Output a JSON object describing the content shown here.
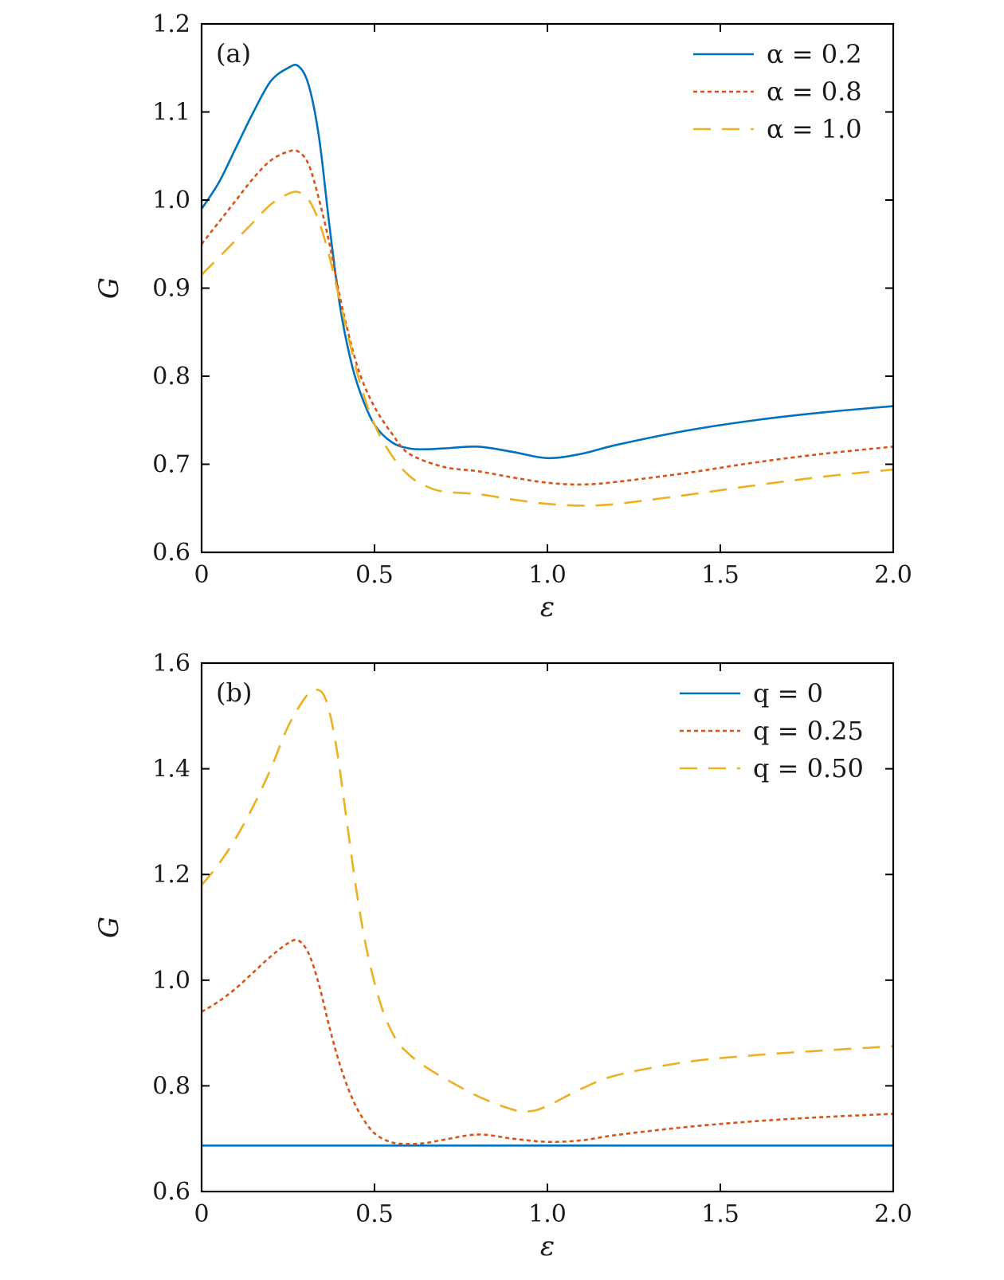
{
  "colors": {
    "series1": "#0072BD",
    "series2": "#D95319",
    "series3": "#EDB120",
    "axis": "#000000"
  },
  "chart_data": [
    {
      "type": "line",
      "panel_label": "(a)",
      "xlabel": "ε",
      "ylabel": "G",
      "xlim": [
        0,
        2.0
      ],
      "ylim": [
        0.6,
        1.2
      ],
      "xticks": [
        {
          "v": 0,
          "label": "0"
        },
        {
          "v": 0.5,
          "label": "0.5"
        },
        {
          "v": 1.0,
          "label": "1.0"
        },
        {
          "v": 1.5,
          "label": "1.5"
        },
        {
          "v": 2.0,
          "label": "2.0"
        }
      ],
      "yticks": [
        {
          "v": 0.6,
          "label": "0.6"
        },
        {
          "v": 0.7,
          "label": "0.7"
        },
        {
          "v": 0.8,
          "label": "0.8"
        },
        {
          "v": 0.9,
          "label": "0.9"
        },
        {
          "v": 1.0,
          "label": "1.0"
        },
        {
          "v": 1.1,
          "label": "1.1"
        },
        {
          "v": 1.2,
          "label": "1.2"
        }
      ],
      "legend_position": "top-right",
      "series": [
        {
          "name": "α = 0.2",
          "style": "solid",
          "color": "#0072BD",
          "x": [
            0,
            0.05,
            0.1,
            0.15,
            0.2,
            0.25,
            0.28,
            0.31,
            0.34,
            0.37,
            0.4,
            0.43,
            0.46,
            0.5,
            0.55,
            0.6,
            0.65,
            0.7,
            0.8,
            0.9,
            1.0,
            1.1,
            1.2,
            1.4,
            1.6,
            1.8,
            2.0
          ],
          "y": [
            0.99,
            1.02,
            1.06,
            1.1,
            1.135,
            1.15,
            1.152,
            1.13,
            1.07,
            0.97,
            0.88,
            0.82,
            0.78,
            0.745,
            0.725,
            0.718,
            0.717,
            0.718,
            0.72,
            0.714,
            0.707,
            0.712,
            0.722,
            0.738,
            0.75,
            0.759,
            0.766
          ]
        },
        {
          "name": "α = 0.8",
          "style": "dotted",
          "color": "#D95319",
          "x": [
            0,
            0.05,
            0.1,
            0.15,
            0.2,
            0.25,
            0.28,
            0.31,
            0.34,
            0.37,
            0.4,
            0.43,
            0.46,
            0.5,
            0.55,
            0.6,
            0.7,
            0.8,
            0.9,
            1.0,
            1.1,
            1.2,
            1.4,
            1.6,
            1.8,
            2.0
          ],
          "y": [
            0.95,
            0.975,
            1.0,
            1.025,
            1.045,
            1.055,
            1.055,
            1.04,
            1.0,
            0.95,
            0.89,
            0.84,
            0.8,
            0.765,
            0.735,
            0.712,
            0.697,
            0.692,
            0.685,
            0.679,
            0.677,
            0.68,
            0.69,
            0.702,
            0.712,
            0.72
          ]
        },
        {
          "name": "α = 1.0",
          "style": "dashed",
          "color": "#EDB120",
          "x": [
            0,
            0.05,
            0.1,
            0.15,
            0.2,
            0.25,
            0.28,
            0.31,
            0.34,
            0.37,
            0.4,
            0.43,
            0.46,
            0.5,
            0.55,
            0.6,
            0.65,
            0.7,
            0.8,
            0.9,
            1.0,
            1.1,
            1.2,
            1.4,
            1.6,
            1.8,
            2.0
          ],
          "y": [
            0.915,
            0.935,
            0.955,
            0.975,
            0.995,
            1.007,
            1.009,
            1.0,
            0.975,
            0.935,
            0.885,
            0.835,
            0.79,
            0.745,
            0.71,
            0.687,
            0.675,
            0.669,
            0.666,
            0.66,
            0.655,
            0.653,
            0.655,
            0.665,
            0.676,
            0.686,
            0.694
          ]
        }
      ]
    },
    {
      "type": "line",
      "panel_label": "(b)",
      "xlabel": "ε",
      "ylabel": "G",
      "xlim": [
        0,
        2.0
      ],
      "ylim": [
        0.6,
        1.6
      ],
      "xticks": [
        {
          "v": 0,
          "label": "0"
        },
        {
          "v": 0.5,
          "label": "0.5"
        },
        {
          "v": 1.0,
          "label": "1.0"
        },
        {
          "v": 1.5,
          "label": "1.5"
        },
        {
          "v": 2.0,
          "label": "2.0"
        }
      ],
      "yticks": [
        {
          "v": 0.6,
          "label": "0.6"
        },
        {
          "v": 0.8,
          "label": "0.8"
        },
        {
          "v": 1.0,
          "label": "1.0"
        },
        {
          "v": 1.2,
          "label": "1.2"
        },
        {
          "v": 1.4,
          "label": "1.4"
        },
        {
          "v": 1.6,
          "label": "1.6"
        }
      ],
      "legend_position": "top-right",
      "series": [
        {
          "name": "q = 0",
          "style": "solid",
          "color": "#0072BD",
          "x": [
            0,
            2.0
          ],
          "y": [
            0.687,
            0.687
          ]
        },
        {
          "name": "q = 0.25",
          "style": "dotted",
          "color": "#D95319",
          "x": [
            0,
            0.05,
            0.1,
            0.15,
            0.2,
            0.25,
            0.28,
            0.31,
            0.34,
            0.37,
            0.4,
            0.43,
            0.46,
            0.5,
            0.55,
            0.6,
            0.65,
            0.7,
            0.8,
            0.9,
            1.0,
            1.1,
            1.2,
            1.4,
            1.6,
            1.8,
            2.0
          ],
          "y": [
            0.94,
            0.96,
            0.985,
            1.015,
            1.045,
            1.07,
            1.075,
            1.05,
            0.99,
            0.91,
            0.84,
            0.785,
            0.745,
            0.71,
            0.693,
            0.69,
            0.692,
            0.698,
            0.708,
            0.7,
            0.694,
            0.697,
            0.707,
            0.722,
            0.733,
            0.741,
            0.747
          ]
        },
        {
          "name": "q = 0.50",
          "style": "dashed",
          "color": "#EDB120",
          "x": [
            0,
            0.05,
            0.1,
            0.15,
            0.2,
            0.25,
            0.3,
            0.33,
            0.36,
            0.39,
            0.42,
            0.45,
            0.48,
            0.52,
            0.56,
            0.6,
            0.65,
            0.7,
            0.8,
            0.9,
            0.95,
            1.0,
            1.1,
            1.2,
            1.4,
            1.6,
            1.8,
            2.0
          ],
          "y": [
            1.18,
            1.22,
            1.27,
            1.33,
            1.4,
            1.48,
            1.535,
            1.55,
            1.53,
            1.44,
            1.3,
            1.16,
            1.05,
            0.95,
            0.89,
            0.86,
            0.835,
            0.815,
            0.78,
            0.755,
            0.752,
            0.762,
            0.795,
            0.82,
            0.845,
            0.858,
            0.867,
            0.875
          ]
        }
      ]
    }
  ]
}
